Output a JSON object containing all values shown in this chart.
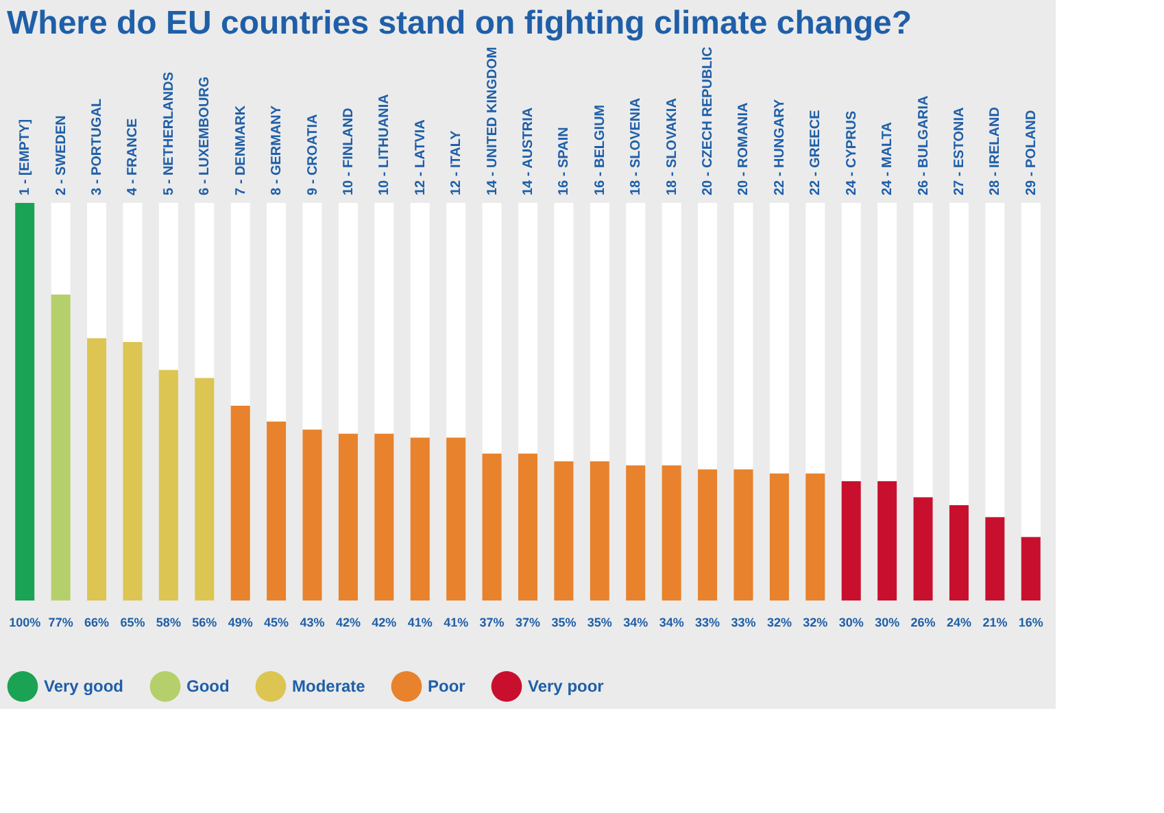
{
  "chart_data": {
    "type": "bar",
    "title": "Where do EU countries stand on fighting climate change?",
    "stacked": true,
    "legend": "bottom",
    "grid": false,
    "categories": [
      "1 - [EMPTY]",
      "2 - SWEDEN",
      "3 - PORTUGAL",
      "4 - FRANCE",
      "5 - NETHERLANDS",
      "6 - LUXEMBOURG",
      "7 - DENMARK",
      "8 - GERMANY",
      "9 - CROATIA",
      "10 - FINLAND",
      "10 - LITHUANIA",
      "12 - LATVIA",
      "12 - ITALY",
      "14 - UNITED KINGDOM",
      "14 - AUSTRIA",
      "16 - SPAIN",
      "16 - BELGIUM",
      "18 - SLOVENIA",
      "18 - SLOVAKIA",
      "20 - CZECH REPUBLIC",
      "20 - ROMANIA",
      "22 - HUNGARY",
      "22 - GREECE",
      "24 - CYPRUS",
      "24 - MALTA",
      "26 - BULGARIA",
      "27 - ESTONIA",
      "28 - IRELAND",
      "29 - POLAND"
    ],
    "series": [
      {
        "name": "Very good",
        "color": "#1aa354",
        "values": [
          100,
          null,
          null,
          null,
          null,
          null,
          null,
          null,
          null,
          null,
          null,
          null,
          null,
          null,
          null,
          null,
          null,
          null,
          null,
          null,
          null,
          null,
          null,
          null,
          null,
          null,
          null,
          null,
          null
        ],
        "value_labels": [
          "100%",
          null,
          null,
          null,
          null,
          null,
          null,
          null,
          null,
          null,
          null,
          null,
          null,
          null,
          null,
          null,
          null,
          null,
          null,
          null,
          null,
          null,
          null,
          null,
          null,
          null,
          null,
          null,
          null
        ]
      },
      {
        "name": "Good",
        "color": "#b5cf6b",
        "values": [
          null,
          77,
          null,
          null,
          null,
          null,
          null,
          null,
          null,
          null,
          null,
          null,
          null,
          null,
          null,
          null,
          null,
          null,
          null,
          null,
          null,
          null,
          null,
          null,
          null,
          null,
          null,
          null,
          null
        ],
        "value_labels": [
          null,
          "77%",
          null,
          null,
          null,
          null,
          null,
          null,
          null,
          null,
          null,
          null,
          null,
          null,
          null,
          null,
          null,
          null,
          null,
          null,
          null,
          null,
          null,
          null,
          null,
          null,
          null,
          null,
          null
        ]
      },
      {
        "name": "Moderate",
        "color": "#dcc552",
        "values": [
          null,
          null,
          66,
          65,
          58,
          56,
          null,
          null,
          null,
          null,
          null,
          null,
          null,
          null,
          null,
          null,
          null,
          null,
          null,
          null,
          null,
          null,
          null,
          null,
          null,
          null,
          null,
          null,
          null
        ],
        "value_labels": [
          null,
          null,
          "66%",
          "65%",
          "58%",
          "56%",
          null,
          null,
          null,
          null,
          null,
          null,
          null,
          null,
          null,
          null,
          null,
          null,
          null,
          null,
          null,
          null,
          null,
          null,
          null,
          null,
          null,
          null,
          null
        ]
      },
      {
        "name": "Poor",
        "color": "#e8822c",
        "values": [
          null,
          null,
          null,
          null,
          null,
          null,
          49,
          45,
          43,
          42,
          42,
          41,
          41,
          37,
          37,
          35,
          35,
          34,
          34,
          33,
          33,
          32,
          32,
          null,
          null,
          null,
          null,
          null,
          null
        ],
        "value_labels": [
          null,
          null,
          null,
          null,
          null,
          null,
          "49%",
          "45%",
          "43%",
          "42%",
          "42%",
          "41%",
          "41%",
          "37%",
          "37%",
          "35%",
          "35%",
          "34%",
          "34%",
          "33%",
          "33%",
          "32%",
          "32%",
          null,
          null,
          null,
          null,
          null,
          null
        ]
      },
      {
        "name": "Very poor",
        "color": "#c8102e",
        "values": [
          null,
          null,
          null,
          null,
          null,
          null,
          null,
          null,
          null,
          null,
          null,
          null,
          null,
          null,
          null,
          null,
          null,
          null,
          null,
          null,
          null,
          null,
          null,
          30,
          30,
          26,
          24,
          21,
          16
        ],
        "value_labels": [
          null,
          null,
          null,
          null,
          null,
          null,
          null,
          null,
          null,
          null,
          null,
          null,
          null,
          null,
          null,
          null,
          null,
          null,
          null,
          null,
          null,
          null,
          null,
          "30%",
          "30%",
          "26%",
          "24%",
          "21%",
          "16%"
        ]
      },
      {
        "color": "#ffffff",
        "values": [
          0,
          23,
          34,
          35,
          42,
          44,
          51,
          55,
          57,
          58,
          58,
          59,
          59,
          63,
          63,
          65,
          65,
          66,
          66,
          67,
          67,
          68,
          68,
          70,
          70,
          74,
          76,
          79,
          84
        ]
      }
    ]
  }
}
